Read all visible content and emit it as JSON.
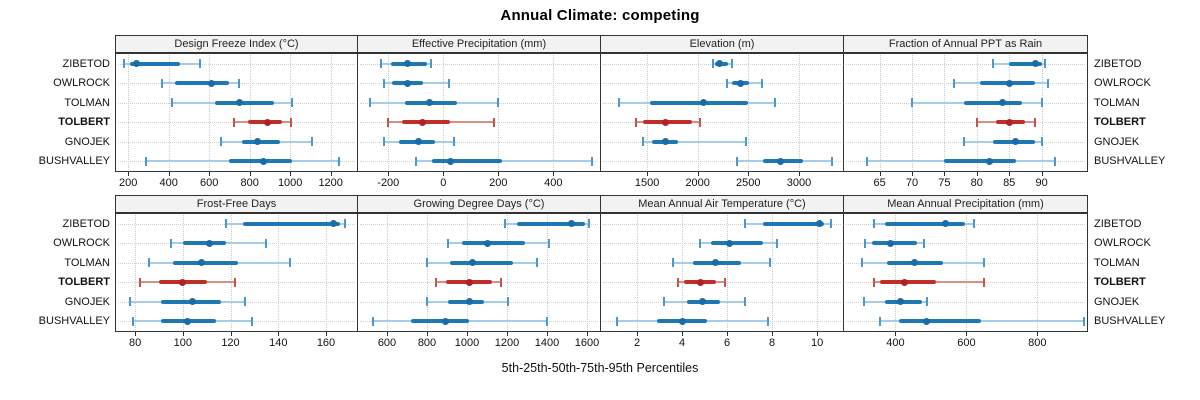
{
  "title": "Annual Climate: competing",
  "caption": "5th-25th-50th-75th-95th Percentiles",
  "stations": [
    {
      "name": "ZIBETOD",
      "highlight": false
    },
    {
      "name": "OWLROCK",
      "highlight": false
    },
    {
      "name": "TOLMAN",
      "highlight": false
    },
    {
      "name": "TOLBERT",
      "highlight": true
    },
    {
      "name": "GNOJEK",
      "highlight": false
    },
    {
      "name": "BUSHVALLEY",
      "highlight": false
    }
  ],
  "colors": {
    "blue_dot": "#1A6CA8",
    "blue_iqr": "#1F77B4",
    "blue_whisker": "#A5CDE8",
    "blue_cap": "#4E97C9",
    "red_dot": "#B02126",
    "red_iqr": "#BE2F2B",
    "red_whisker": "#D88F88",
    "red_cap": "#C4554C",
    "panel_border": "#333333",
    "strip_bg": "#F2F2F2",
    "grid": "#C9C9C9"
  },
  "percentile_levels": [
    5,
    25,
    50,
    75,
    95
  ],
  "chart_data": [
    {
      "type": "scatter",
      "subtype": "percentile-dotplot",
      "title": "Design Freeze Index (°C)",
      "xlim": [
        140,
        1330
      ],
      "ticks": [
        200,
        400,
        600,
        800,
        1000,
        1200
      ],
      "series": [
        {
          "name": "ZIBETOD",
          "percentiles": [
            180,
            210,
            240,
            455,
            555
          ]
        },
        {
          "name": "OWLROCK",
          "percentiles": [
            365,
            430,
            610,
            700,
            745
          ]
        },
        {
          "name": "TOLMAN",
          "percentiles": [
            415,
            630,
            750,
            920,
            1010
          ]
        },
        {
          "name": "TOLBERT",
          "percentiles": [
            720,
            790,
            890,
            960,
            1005
          ]
        },
        {
          "name": "GNOJEK",
          "percentiles": [
            660,
            760,
            840,
            950,
            1110
          ]
        },
        {
          "name": "BUSHVALLEY",
          "percentiles": [
            290,
            700,
            870,
            1010,
            1240
          ]
        }
      ]
    },
    {
      "type": "scatter",
      "subtype": "percentile-dotplot",
      "title": "Effective Precipitation (mm)",
      "xlim": [
        -310,
        570
      ],
      "ticks": [
        -200,
        0,
        200,
        400
      ],
      "series": [
        {
          "name": "ZIBETOD",
          "percentiles": [
            -225,
            -190,
            -130,
            -60,
            -45
          ]
        },
        {
          "name": "OWLROCK",
          "percentiles": [
            -215,
            -185,
            -130,
            -75,
            20
          ]
        },
        {
          "name": "TOLMAN",
          "percentiles": [
            -265,
            -140,
            -50,
            50,
            200
          ]
        },
        {
          "name": "TOLBERT",
          "percentiles": [
            -200,
            -150,
            -75,
            25,
            185
          ]
        },
        {
          "name": "GNOJEK",
          "percentiles": [
            -215,
            -160,
            -90,
            -30,
            40
          ]
        },
        {
          "name": "BUSHVALLEY",
          "percentiles": [
            -100,
            -40,
            25,
            215,
            540
          ]
        }
      ]
    },
    {
      "type": "scatter",
      "subtype": "percentile-dotplot",
      "title": "Elevation (m)",
      "xlim": [
        1045,
        3435
      ],
      "ticks": [
        1500,
        2000,
        2500,
        3000
      ],
      "series": [
        {
          "name": "ZIBETOD",
          "percentiles": [
            2150,
            2170,
            2215,
            2295,
            2340
          ]
        },
        {
          "name": "OWLROCK",
          "percentiles": [
            2290,
            2335,
            2420,
            2505,
            2630
          ]
        },
        {
          "name": "TOLMAN",
          "percentiles": [
            1220,
            1530,
            2060,
            2500,
            2760
          ]
        },
        {
          "name": "TOLBERT",
          "percentiles": [
            1390,
            1455,
            1680,
            1945,
            2020
          ]
        },
        {
          "name": "GNOJEK",
          "percentiles": [
            1460,
            1550,
            1680,
            1810,
            2480
          ]
        },
        {
          "name": "BUSHVALLEY",
          "percentiles": [
            2390,
            2645,
            2820,
            3040,
            3330
          ]
        }
      ]
    },
    {
      "type": "scatter",
      "subtype": "percentile-dotplot",
      "title": "Fraction of Annual PPT as Rain",
      "xlim": [
        59.5,
        97
      ],
      "ticks": [
        65,
        70,
        75,
        80,
        85,
        90
      ],
      "series": [
        {
          "name": "ZIBETOD",
          "percentiles": [
            82.5,
            85,
            89,
            90,
            90.5
          ]
        },
        {
          "name": "OWLROCK",
          "percentiles": [
            76.5,
            80.5,
            85,
            89,
            91
          ]
        },
        {
          "name": "TOLMAN",
          "percentiles": [
            70,
            78,
            84,
            87,
            90
          ]
        },
        {
          "name": "TOLBERT",
          "percentiles": [
            80,
            83,
            85,
            87.5,
            89
          ]
        },
        {
          "name": "GNOJEK",
          "percentiles": [
            78,
            82.5,
            86,
            89,
            90
          ]
        },
        {
          "name": "BUSHVALLEY",
          "percentiles": [
            63,
            75,
            82,
            86,
            92
          ]
        }
      ]
    },
    {
      "type": "scatter",
      "subtype": "percentile-dotplot",
      "title": "Frost-Free Days",
      "xlim": [
        72,
        173
      ],
      "ticks": [
        80,
        100,
        120,
        140,
        160
      ],
      "series": [
        {
          "name": "ZIBETOD",
          "percentiles": [
            118,
            125,
            163,
            166,
            168
          ]
        },
        {
          "name": "OWLROCK",
          "percentiles": [
            95,
            100,
            111,
            118,
            135
          ]
        },
        {
          "name": "TOLMAN",
          "percentiles": [
            86,
            96,
            108,
            123,
            145
          ]
        },
        {
          "name": "TOLBERT",
          "percentiles": [
            82,
            90,
            100,
            110,
            122
          ]
        },
        {
          "name": "GNOJEK",
          "percentiles": [
            78,
            91,
            104,
            116,
            126
          ]
        },
        {
          "name": "BUSHVALLEY",
          "percentiles": [
            79,
            91,
            102,
            114,
            129
          ]
        }
      ]
    },
    {
      "type": "scatter",
      "subtype": "percentile-dotplot",
      "title": "Growing Degree Days (°C)",
      "xlim": [
        455,
        1665
      ],
      "ticks": [
        600,
        800,
        1000,
        1200,
        1400,
        1600
      ],
      "series": [
        {
          "name": "ZIBETOD",
          "percentiles": [
            1190,
            1250,
            1520,
            1590,
            1610
          ]
        },
        {
          "name": "OWLROCK",
          "percentiles": [
            905,
            975,
            1100,
            1290,
            1410
          ]
        },
        {
          "name": "TOLMAN",
          "percentiles": [
            800,
            915,
            1025,
            1230,
            1350
          ]
        },
        {
          "name": "TOLBERT",
          "percentiles": [
            845,
            895,
            1010,
            1125,
            1170
          ]
        },
        {
          "name": "GNOJEK",
          "percentiles": [
            800,
            905,
            1010,
            1085,
            1205
          ]
        },
        {
          "name": "BUSHVALLEY",
          "percentiles": [
            530,
            720,
            890,
            1010,
            1400
          ]
        }
      ]
    },
    {
      "type": "scatter",
      "subtype": "percentile-dotplot",
      "title": "Mean Annual Air Temperature (°C)",
      "xlim": [
        0.4,
        11.15
      ],
      "ticks": [
        2,
        4,
        6,
        8,
        10
      ],
      "series": [
        {
          "name": "ZIBETOD",
          "percentiles": [
            6.8,
            7.6,
            10.1,
            10.3,
            10.6
          ]
        },
        {
          "name": "OWLROCK",
          "percentiles": [
            4.8,
            5.3,
            6.1,
            7.6,
            8.2
          ]
        },
        {
          "name": "TOLMAN",
          "percentiles": [
            3.6,
            4.5,
            5.5,
            6.6,
            7.9
          ]
        },
        {
          "name": "TOLBERT",
          "percentiles": [
            3.8,
            4.1,
            4.8,
            5.5,
            5.9
          ]
        },
        {
          "name": "GNOJEK",
          "percentiles": [
            3.2,
            4.2,
            4.9,
            5.7,
            6.8
          ]
        },
        {
          "name": "BUSHVALLEY",
          "percentiles": [
            1.1,
            2.9,
            4.0,
            5.1,
            7.8
          ]
        }
      ]
    },
    {
      "type": "scatter",
      "subtype": "percentile-dotplot",
      "title": "Mean Annual Precipitation (mm)",
      "xlim": [
        255,
        940
      ],
      "ticks": [
        400,
        600,
        800
      ],
      "series": [
        {
          "name": "ZIBETOD",
          "percentiles": [
            340,
            370,
            540,
            595,
            620
          ]
        },
        {
          "name": "OWLROCK",
          "percentiles": [
            315,
            335,
            385,
            460,
            480
          ]
        },
        {
          "name": "TOLMAN",
          "percentiles": [
            305,
            375,
            455,
            535,
            650
          ]
        },
        {
          "name": "TOLBERT",
          "percentiles": [
            340,
            355,
            425,
            515,
            650
          ]
        },
        {
          "name": "GNOJEK",
          "percentiles": [
            310,
            370,
            415,
            475,
            490
          ]
        },
        {
          "name": "BUSHVALLEY",
          "percentiles": [
            355,
            410,
            487,
            640,
            930
          ]
        }
      ]
    }
  ]
}
